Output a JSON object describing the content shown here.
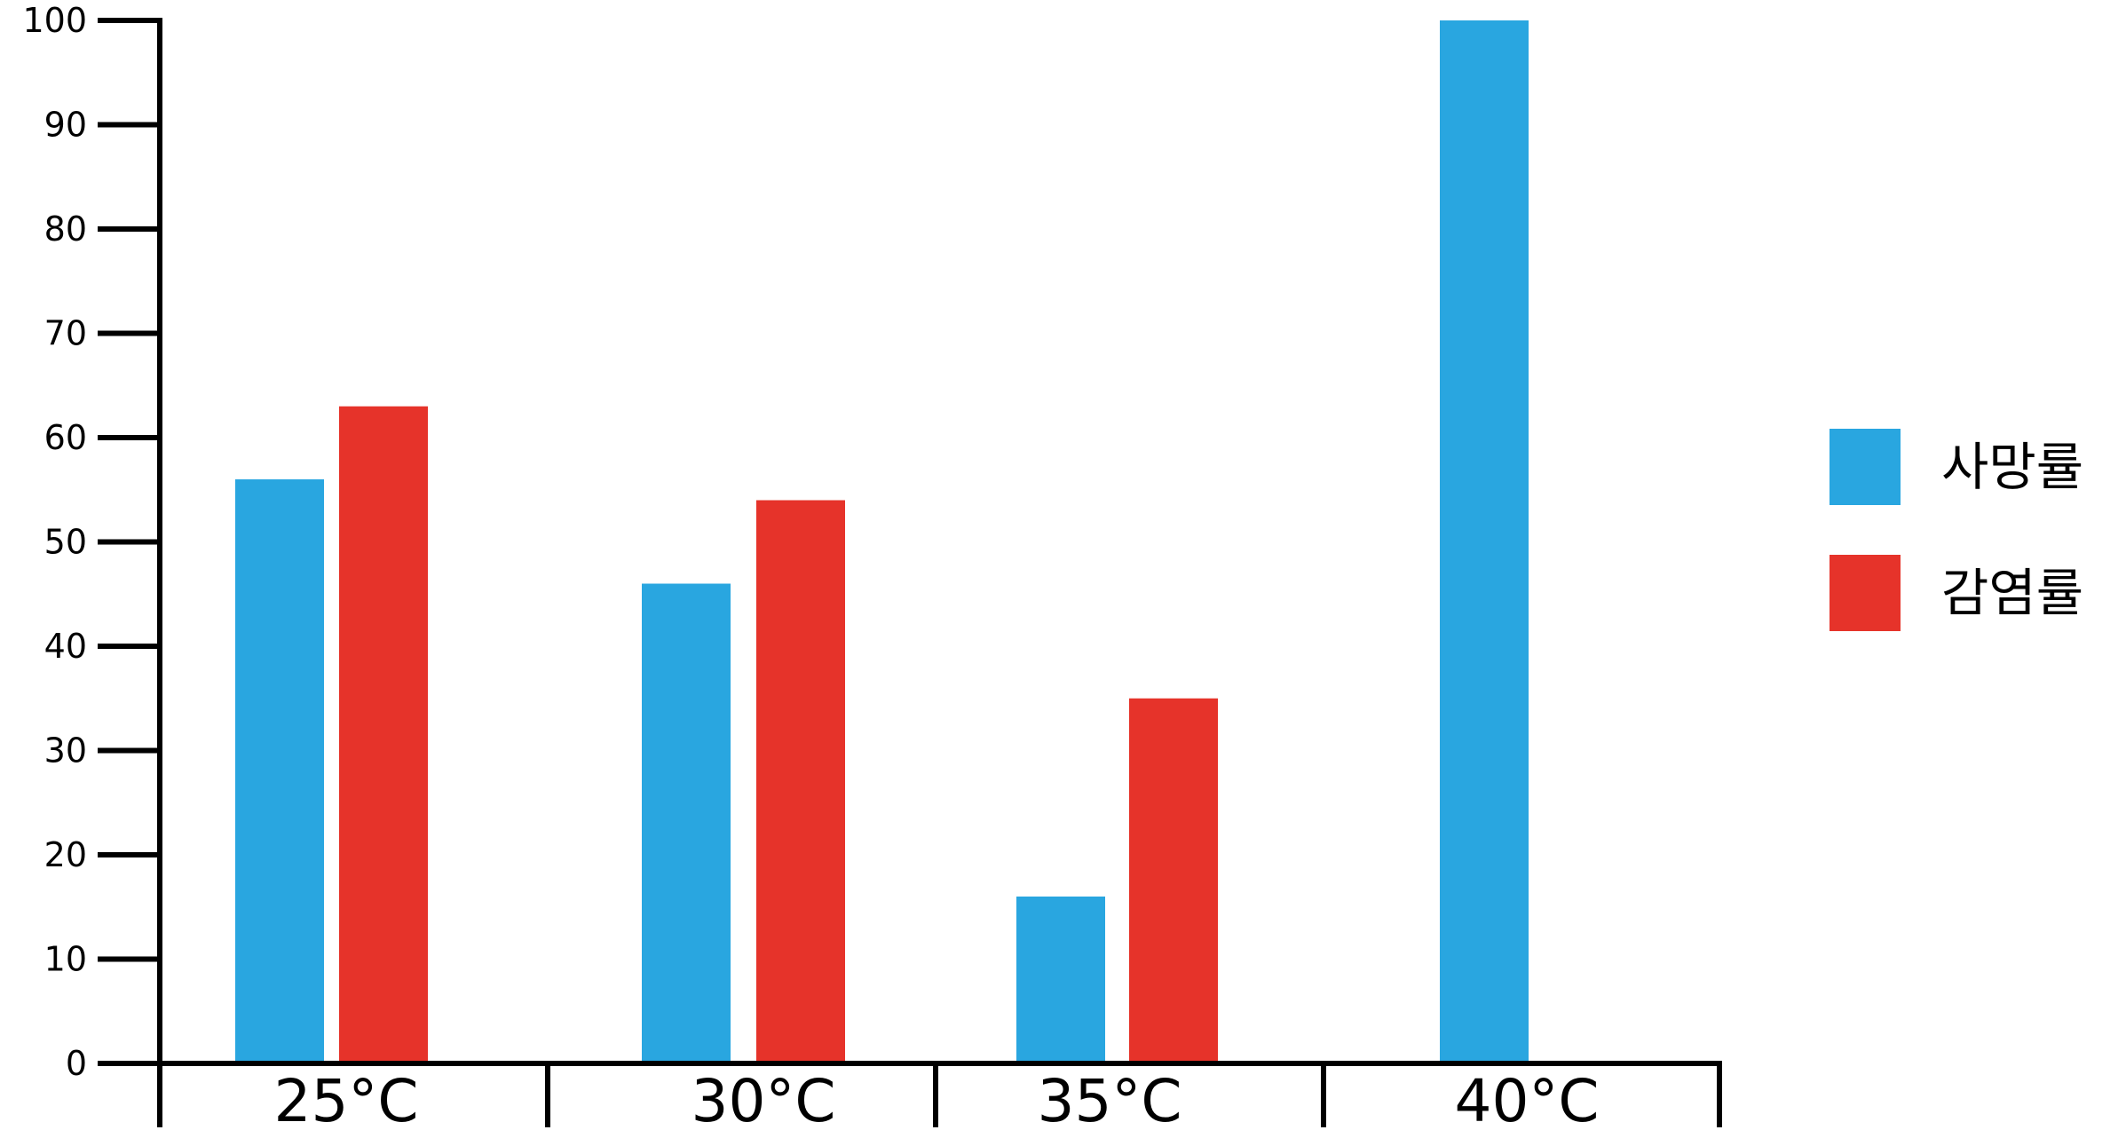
{
  "chart_data": {
    "type": "bar",
    "title": "",
    "xlabel": "",
    "ylabel": "",
    "categories": [
      "25°C",
      "30°C",
      "35°C",
      "40°C"
    ],
    "series": [
      {
        "name": "사망률",
        "color": "#29a6e0",
        "values": [
          56,
          46,
          16,
          100
        ]
      },
      {
        "name": "감염률",
        "color": "#e6332a",
        "values": [
          63,
          54,
          35,
          null
        ]
      }
    ],
    "ylim": [
      0,
      100
    ],
    "yticks": [
      0,
      10,
      20,
      30,
      40,
      50,
      60,
      70,
      80,
      90,
      100
    ],
    "grid": false,
    "legend_position": "right"
  }
}
